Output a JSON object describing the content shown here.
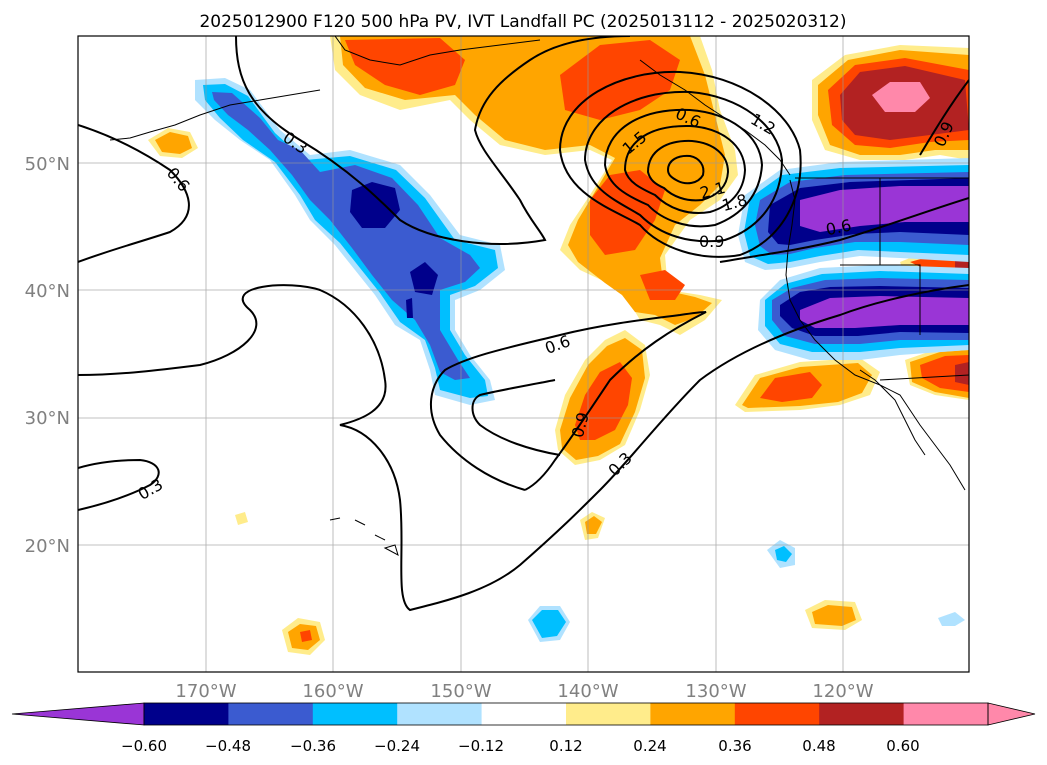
{
  "title": "2025012900 F120 500 hPa PV, IVT Landfall PC (2025013112 - 2025020312)",
  "map": {
    "lon_labels": [
      "170°W",
      "160°W",
      "150°W",
      "140°W",
      "130°W",
      "120°W"
    ],
    "lat_labels": [
      "50°N",
      "40°N",
      "30°N",
      "20°N"
    ],
    "contour_labels": [
      "0.3",
      "0.6",
      "0.9",
      "1.2",
      "1.5",
      "1.8",
      "2.1",
      "0.6",
      "0.3",
      "0.6",
      "0.9",
      "0.3",
      "0.9",
      "0.6"
    ]
  },
  "colorbar": {
    "ticks": [
      "−0.60",
      "−0.48",
      "−0.36",
      "−0.24",
      "−0.12",
      "0.12",
      "0.24",
      "0.36",
      "0.48",
      "0.60"
    ],
    "colors": [
      "#9a35d6",
      "#00008b",
      "#3b5bd0",
      "#00bfff",
      "#b0e2ff",
      "#ffffff",
      "#ffec8b",
      "#ffa500",
      "#ff4500",
      "#b22222",
      "#ff88aa",
      "#ff88aa"
    ]
  },
  "colors": {
    "pos_light": "#ffec8b",
    "pos_orange": "#ffa500",
    "pos_red": "#ff4500",
    "pos_darkred": "#b22222",
    "pos_pink": "#ff88aa",
    "neg_pale": "#b0e2ff",
    "neg_sky": "#00bfff",
    "neg_blue": "#3b5bd0",
    "neg_navy": "#00008b",
    "neg_purple": "#9a35d6"
  }
}
